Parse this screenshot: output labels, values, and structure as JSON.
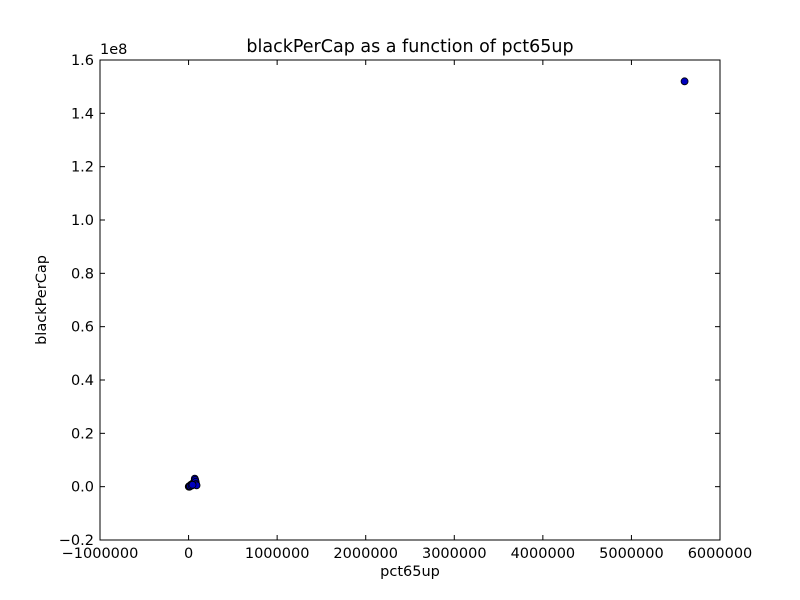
{
  "chart_data": {
    "type": "scatter",
    "title": "blackPerCap as a function of pct65up",
    "xlabel": "pct65up",
    "ylabel": "blackPerCap",
    "y_offset_label": "1e8",
    "xlim": [
      -1000000,
      6000000
    ],
    "ylim": [
      -0.2,
      1.6
    ],
    "y_scale_factor": 100000000,
    "x_ticks": [
      -1000000,
      0,
      1000000,
      2000000,
      3000000,
      4000000,
      5000000,
      6000000
    ],
    "x_tick_labels": [
      "−1000000",
      "0",
      "1000000",
      "2000000",
      "3000000",
      "4000000",
      "5000000",
      "6000000"
    ],
    "y_ticks": [
      -0.2,
      0.0,
      0.2,
      0.4,
      0.6,
      0.8,
      1.0,
      1.2,
      1.4,
      1.6
    ],
    "y_tick_labels": [
      "−0.2",
      "0.0",
      "0.2",
      "0.4",
      "0.6",
      "0.8",
      "1.0",
      "1.2",
      "1.4",
      "1.6"
    ],
    "grid": false,
    "legend": "none",
    "marker_color": "#0000bf",
    "marker_edge": "#000000",
    "series": [
      {
        "x": [
          5600000,
          2000,
          5000,
          8000,
          10000,
          15000,
          20000,
          25000,
          30000,
          40000,
          50000,
          55000,
          60000,
          65000,
          70000,
          75000,
          80000,
          85000,
          90000,
          12000,
          18000,
          35000,
          45000
        ],
        "y": [
          1.52,
          0.0,
          0.001,
          0.002,
          0.0,
          0.003,
          0.005,
          0.004,
          0.008,
          0.006,
          0.012,
          0.01,
          0.015,
          0.02,
          0.03,
          0.025,
          0.018,
          0.01,
          0.005,
          0.0,
          0.002,
          0.004,
          0.007
        ]
      }
    ]
  }
}
